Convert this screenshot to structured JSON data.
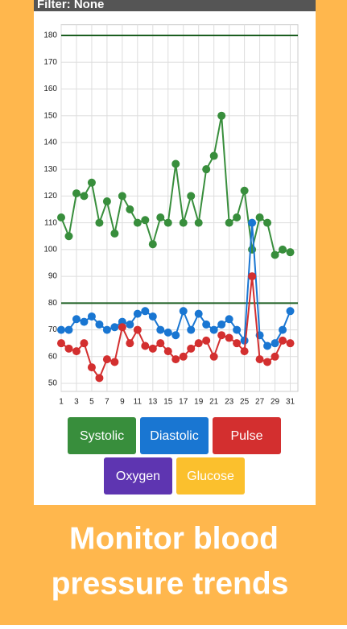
{
  "header": {
    "title": "Filter: None"
  },
  "chart_data": {
    "type": "line",
    "x": [
      1,
      2,
      3,
      4,
      5,
      6,
      7,
      8,
      9,
      10,
      11,
      12,
      13,
      14,
      15,
      16,
      17,
      18,
      19,
      20,
      21,
      22,
      23,
      24,
      25,
      26,
      27,
      28,
      29,
      30,
      31
    ],
    "series": [
      {
        "color": "#388e3c",
        "values": [
          112,
          105,
          121,
          120,
          125,
          110,
          118,
          106,
          120,
          115,
          110,
          111,
          102,
          112,
          110,
          132,
          110,
          120,
          110,
          130,
          135,
          150,
          110,
          112,
          122,
          100,
          112,
          110,
          98,
          100,
          99
        ]
      },
      {
        "color": "#1976d2",
        "values": [
          70,
          70,
          74,
          73,
          75,
          72,
          70,
          71,
          73,
          72,
          76,
          77,
          75,
          70,
          69,
          68,
          77,
          70,
          76,
          72,
          70,
          72,
          74,
          70,
          66,
          110,
          68,
          64,
          65,
          70,
          77
        ]
      },
      {
        "color": "#d32f2f",
        "values": [
          65,
          63,
          62,
          65,
          56,
          52,
          59,
          58,
          71,
          65,
          70,
          64,
          63,
          65,
          62,
          59,
          60,
          63,
          65,
          66,
          60,
          68,
          67,
          65,
          62,
          90,
          59,
          58,
          60,
          66,
          65
        ]
      }
    ],
    "xlim": [
      1,
      32
    ],
    "xticks": [
      1,
      3,
      5,
      7,
      9,
      11,
      13,
      15,
      17,
      19,
      21,
      23,
      25,
      27,
      29,
      31
    ],
    "ylim": [
      47,
      184
    ],
    "yticks": [
      50,
      60,
      70,
      80,
      90,
      100,
      110,
      120,
      130,
      140,
      150,
      160,
      170,
      180
    ],
    "grid": true,
    "reference_lines": [
      180,
      80
    ],
    "reference_color": "#1b5e20"
  },
  "buttons": [
    {
      "label": "Systolic",
      "color": "#388e3c"
    },
    {
      "label": "Diastolic",
      "color": "#1976d2"
    },
    {
      "label": "Pulse",
      "color": "#d32f2f"
    },
    {
      "label": "Oxygen",
      "color": "#5e35b1"
    },
    {
      "label": "Glucose",
      "color": "#fbc02d"
    }
  ],
  "caption": {
    "line1": "Monitor blood",
    "line2": "pressure trends"
  }
}
